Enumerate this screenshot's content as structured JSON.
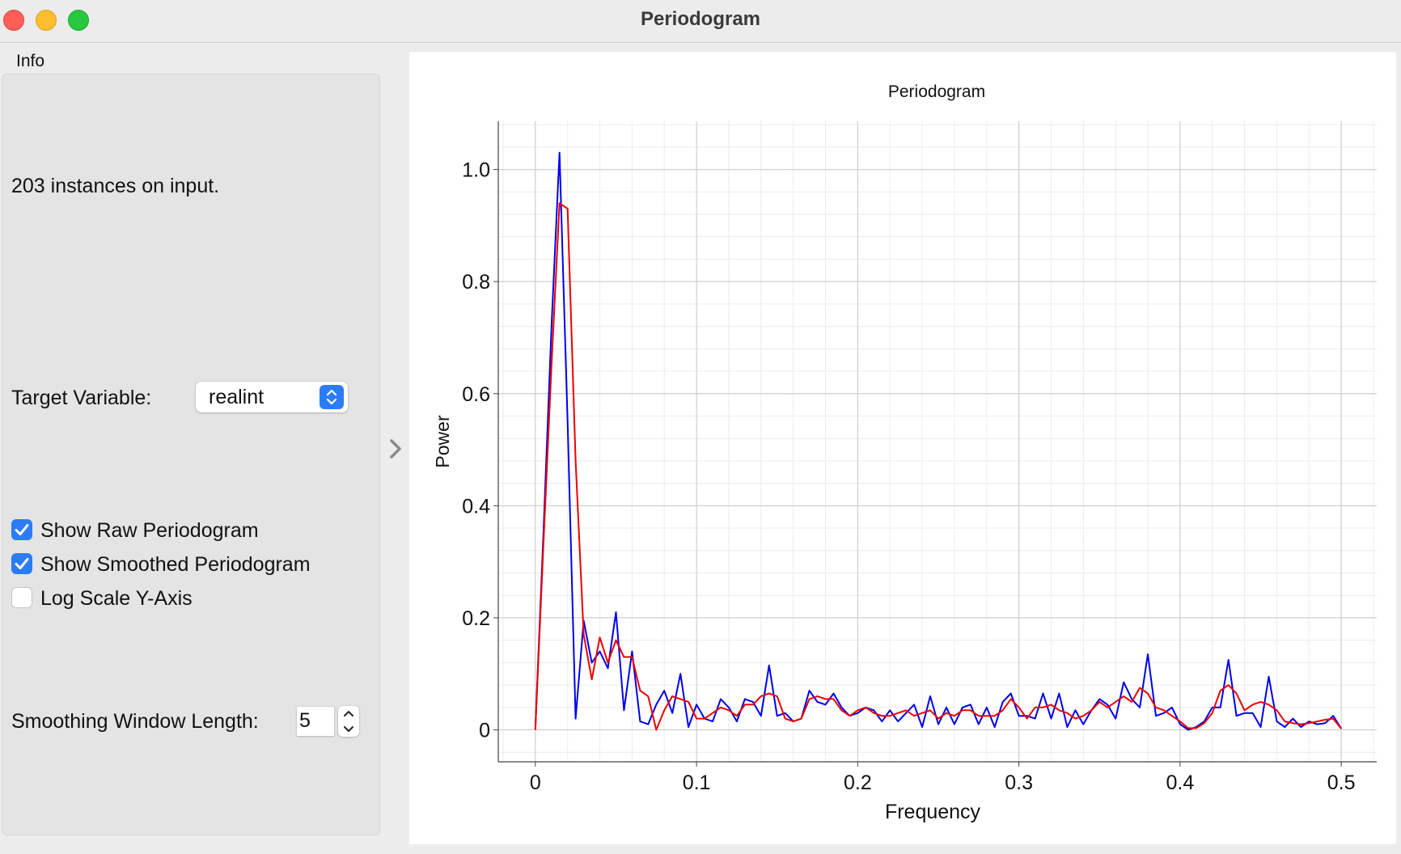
{
  "window": {
    "title": "Periodogram"
  },
  "controls": {
    "info_label": "Info",
    "info_text": "203 instances on input.",
    "target_label": "Target Variable:",
    "target_value": "realint",
    "show_raw": {
      "label": "Show Raw Periodogram",
      "checked": true
    },
    "show_smoothed": {
      "label": "Show Smoothed Periodogram",
      "checked": true
    },
    "log_scale": {
      "label": "Log Scale Y-Axis",
      "checked": false
    },
    "smoothing_label": "Smoothing Window Length:",
    "smoothing_value": "5"
  },
  "icons": {
    "select_arrows": "up-down-chevron-icon",
    "spin_up": "chevron-up-icon",
    "spin_down": "chevron-down-icon",
    "collapse": "chevron-right-icon"
  },
  "colors": {
    "accent": "#2c7cf6",
    "raw": "#0000ee",
    "smoothed": "#ee0000"
  },
  "chart_data": {
    "type": "line",
    "title": "Periodogram",
    "xlabel": "Frequency",
    "ylabel": "Power",
    "xlim": [
      -0.023,
      0.522
    ],
    "ylim": [
      -0.057,
      1.086
    ],
    "xticks": [
      0,
      0.1,
      0.2,
      0.3,
      0.4,
      0.5
    ],
    "xtick_labels": [
      "0",
      "0.1",
      "0.2",
      "0.3",
      "0.4",
      "0.5"
    ],
    "yticks": [
      0,
      0.2,
      0.4,
      0.6,
      0.8,
      1.0
    ],
    "ytick_labels": [
      "0",
      "0.2",
      "0.4",
      "0.6",
      "0.8",
      "1.0"
    ],
    "grid": true,
    "series": [
      {
        "values": [
          [
            0.0,
            0.0
          ],
          [
            0.005,
            0.35
          ],
          [
            0.01,
            0.72
          ],
          [
            0.015,
            1.03
          ],
          [
            0.02,
            0.55
          ],
          [
            0.025,
            0.02
          ],
          [
            0.03,
            0.195
          ],
          [
            0.035,
            0.12
          ],
          [
            0.04,
            0.14
          ],
          [
            0.045,
            0.11
          ],
          [
            0.05,
            0.21
          ],
          [
            0.055,
            0.035
          ],
          [
            0.06,
            0.14
          ],
          [
            0.065,
            0.015
          ],
          [
            0.07,
            0.01
          ],
          [
            0.075,
            0.045
          ],
          [
            0.08,
            0.07
          ],
          [
            0.085,
            0.03
          ],
          [
            0.09,
            0.1
          ],
          [
            0.095,
            0.005
          ],
          [
            0.1,
            0.045
          ],
          [
            0.105,
            0.02
          ],
          [
            0.11,
            0.015
          ],
          [
            0.115,
            0.055
          ],
          [
            0.12,
            0.04
          ],
          [
            0.125,
            0.015
          ],
          [
            0.13,
            0.055
          ],
          [
            0.135,
            0.05
          ],
          [
            0.14,
            0.025
          ],
          [
            0.145,
            0.115
          ],
          [
            0.15,
            0.025
          ],
          [
            0.155,
            0.03
          ],
          [
            0.16,
            0.015
          ],
          [
            0.165,
            0.02
          ],
          [
            0.17,
            0.07
          ],
          [
            0.175,
            0.05
          ],
          [
            0.18,
            0.045
          ],
          [
            0.185,
            0.065
          ],
          [
            0.19,
            0.04
          ],
          [
            0.195,
            0.025
          ],
          [
            0.2,
            0.03
          ],
          [
            0.205,
            0.04
          ],
          [
            0.21,
            0.035
          ],
          [
            0.215,
            0.015
          ],
          [
            0.22,
            0.035
          ],
          [
            0.225,
            0.015
          ],
          [
            0.23,
            0.03
          ],
          [
            0.235,
            0.045
          ],
          [
            0.24,
            0.005
          ],
          [
            0.245,
            0.06
          ],
          [
            0.25,
            0.01
          ],
          [
            0.255,
            0.04
          ],
          [
            0.26,
            0.01
          ],
          [
            0.265,
            0.04
          ],
          [
            0.27,
            0.045
          ],
          [
            0.275,
            0.01
          ],
          [
            0.28,
            0.04
          ],
          [
            0.285,
            0.005
          ],
          [
            0.29,
            0.05
          ],
          [
            0.295,
            0.065
          ],
          [
            0.3,
            0.025
          ],
          [
            0.305,
            0.025
          ],
          [
            0.31,
            0.02
          ],
          [
            0.315,
            0.065
          ],
          [
            0.32,
            0.02
          ],
          [
            0.325,
            0.065
          ],
          [
            0.33,
            0.005
          ],
          [
            0.335,
            0.035
          ],
          [
            0.34,
            0.01
          ],
          [
            0.345,
            0.035
          ],
          [
            0.35,
            0.055
          ],
          [
            0.355,
            0.045
          ],
          [
            0.36,
            0.02
          ],
          [
            0.365,
            0.085
          ],
          [
            0.37,
            0.055
          ],
          [
            0.375,
            0.04
          ],
          [
            0.38,
            0.135
          ],
          [
            0.385,
            0.025
          ],
          [
            0.39,
            0.03
          ],
          [
            0.395,
            0.04
          ],
          [
            0.4,
            0.01
          ],
          [
            0.405,
            0.0
          ],
          [
            0.41,
            0.005
          ],
          [
            0.415,
            0.015
          ],
          [
            0.42,
            0.04
          ],
          [
            0.425,
            0.04
          ],
          [
            0.43,
            0.125
          ],
          [
            0.435,
            0.025
          ],
          [
            0.44,
            0.03
          ],
          [
            0.445,
            0.03
          ],
          [
            0.45,
            0.005
          ],
          [
            0.455,
            0.095
          ],
          [
            0.46,
            0.015
          ],
          [
            0.465,
            0.005
          ],
          [
            0.47,
            0.02
          ],
          [
            0.475,
            0.005
          ],
          [
            0.48,
            0.015
          ],
          [
            0.485,
            0.01
          ],
          [
            0.49,
            0.012
          ],
          [
            0.495,
            0.025
          ],
          [
            0.5,
            0.002
          ]
        ]
      },
      {
        "values": [
          [
            0.0,
            0.0
          ],
          [
            0.005,
            0.33
          ],
          [
            0.01,
            0.65
          ],
          [
            0.015,
            0.94
          ],
          [
            0.02,
            0.93
          ],
          [
            0.025,
            0.48
          ],
          [
            0.03,
            0.17
          ],
          [
            0.035,
            0.09
          ],
          [
            0.04,
            0.165
          ],
          [
            0.045,
            0.12
          ],
          [
            0.05,
            0.16
          ],
          [
            0.055,
            0.13
          ],
          [
            0.06,
            0.13
          ],
          [
            0.065,
            0.07
          ],
          [
            0.07,
            0.06
          ],
          [
            0.075,
            0.0
          ],
          [
            0.08,
            0.035
          ],
          [
            0.085,
            0.06
          ],
          [
            0.09,
            0.055
          ],
          [
            0.095,
            0.05
          ],
          [
            0.1,
            0.02
          ],
          [
            0.105,
            0.02
          ],
          [
            0.11,
            0.03
          ],
          [
            0.115,
            0.04
          ],
          [
            0.12,
            0.035
          ],
          [
            0.125,
            0.025
          ],
          [
            0.13,
            0.045
          ],
          [
            0.135,
            0.045
          ],
          [
            0.14,
            0.06
          ],
          [
            0.145,
            0.065
          ],
          [
            0.15,
            0.06
          ],
          [
            0.155,
            0.02
          ],
          [
            0.16,
            0.015
          ],
          [
            0.165,
            0.02
          ],
          [
            0.17,
            0.055
          ],
          [
            0.175,
            0.06
          ],
          [
            0.18,
            0.055
          ],
          [
            0.185,
            0.055
          ],
          [
            0.19,
            0.035
          ],
          [
            0.195,
            0.025
          ],
          [
            0.2,
            0.035
          ],
          [
            0.205,
            0.04
          ],
          [
            0.21,
            0.03
          ],
          [
            0.215,
            0.025
          ],
          [
            0.22,
            0.025
          ],
          [
            0.225,
            0.03
          ],
          [
            0.23,
            0.035
          ],
          [
            0.235,
            0.025
          ],
          [
            0.24,
            0.03
          ],
          [
            0.245,
            0.035
          ],
          [
            0.25,
            0.02
          ],
          [
            0.255,
            0.03
          ],
          [
            0.26,
            0.025
          ],
          [
            0.265,
            0.035
          ],
          [
            0.27,
            0.035
          ],
          [
            0.275,
            0.025
          ],
          [
            0.28,
            0.025
          ],
          [
            0.285,
            0.025
          ],
          [
            0.29,
            0.035
          ],
          [
            0.295,
            0.055
          ],
          [
            0.3,
            0.04
          ],
          [
            0.305,
            0.02
          ],
          [
            0.31,
            0.04
          ],
          [
            0.315,
            0.04
          ],
          [
            0.32,
            0.045
          ],
          [
            0.325,
            0.035
          ],
          [
            0.33,
            0.03
          ],
          [
            0.335,
            0.02
          ],
          [
            0.34,
            0.025
          ],
          [
            0.345,
            0.035
          ],
          [
            0.35,
            0.05
          ],
          [
            0.355,
            0.04
          ],
          [
            0.36,
            0.05
          ],
          [
            0.365,
            0.06
          ],
          [
            0.37,
            0.05
          ],
          [
            0.375,
            0.075
          ],
          [
            0.38,
            0.065
          ],
          [
            0.385,
            0.04
          ],
          [
            0.39,
            0.035
          ],
          [
            0.395,
            0.025
          ],
          [
            0.4,
            0.015
          ],
          [
            0.405,
            0.003
          ],
          [
            0.41,
            0.003
          ],
          [
            0.415,
            0.012
          ],
          [
            0.42,
            0.03
          ],
          [
            0.425,
            0.07
          ],
          [
            0.43,
            0.08
          ],
          [
            0.435,
            0.065
          ],
          [
            0.44,
            0.035
          ],
          [
            0.445,
            0.045
          ],
          [
            0.45,
            0.05
          ],
          [
            0.455,
            0.045
          ],
          [
            0.46,
            0.035
          ],
          [
            0.465,
            0.015
          ],
          [
            0.47,
            0.012
          ],
          [
            0.475,
            0.01
          ],
          [
            0.48,
            0.012
          ],
          [
            0.485,
            0.015
          ],
          [
            0.49,
            0.018
          ],
          [
            0.495,
            0.02
          ],
          [
            0.5,
            0.002
          ]
        ]
      }
    ]
  }
}
